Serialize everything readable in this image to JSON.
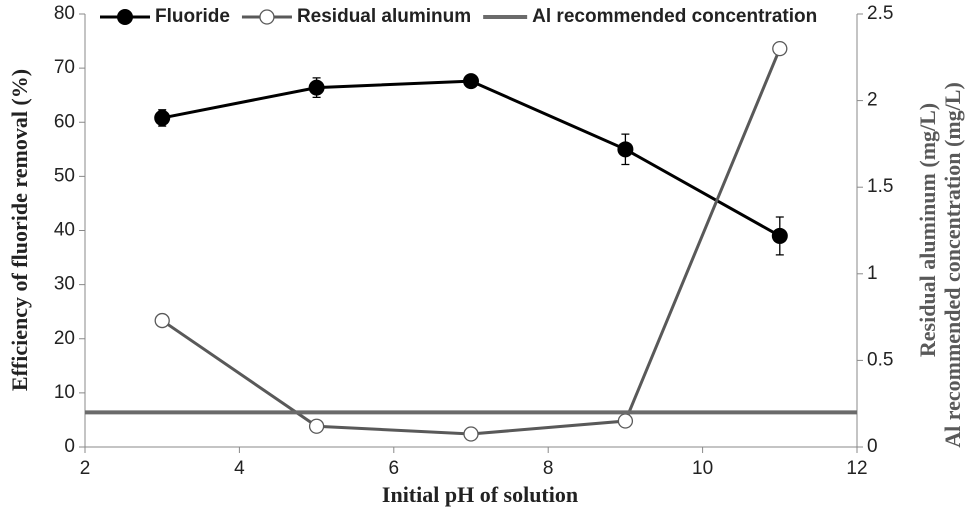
{
  "chart_data": {
    "type": "line",
    "xlabel": "Initial pH of solution",
    "ylabel": "Efficiency of  fluoride removal (%)",
    "y2label": [
      "Residual aluminum  (mg/L)",
      "Al recommended concentration (mg/L)"
    ],
    "x": [
      3,
      5,
      7,
      9,
      11
    ],
    "xlim": [
      2,
      12
    ],
    "xticks": [
      2,
      4,
      6,
      8,
      10,
      12
    ],
    "ylim": [
      0,
      80
    ],
    "yticks": [
      0,
      10,
      20,
      30,
      40,
      50,
      60,
      70,
      80
    ],
    "y2lim": [
      0,
      2.5
    ],
    "y2ticks": [
      0,
      0.5,
      1,
      1.5,
      2,
      2.5
    ],
    "legend": "top",
    "series": [
      {
        "name": "Fluoride",
        "color": "#000000",
        "marker": "filled",
        "values": [
          60.8,
          66.4,
          67.6,
          55.0,
          39.0
        ],
        "errors": [
          1.5,
          1.8,
          0.6,
          2.8,
          3.5
        ]
      },
      {
        "name": "Residual aluminum",
        "color": "#595959",
        "marker": "open",
        "axis": "y2",
        "values": [
          0.73,
          0.12,
          0.075,
          0.15,
          2.3
        ]
      },
      {
        "name": "Al recommended concentration",
        "color": "#6b6b6b",
        "marker": "none",
        "axis": "y2",
        "x": [
          2,
          12
        ],
        "values": [
          0.2,
          0.2
        ]
      }
    ]
  }
}
